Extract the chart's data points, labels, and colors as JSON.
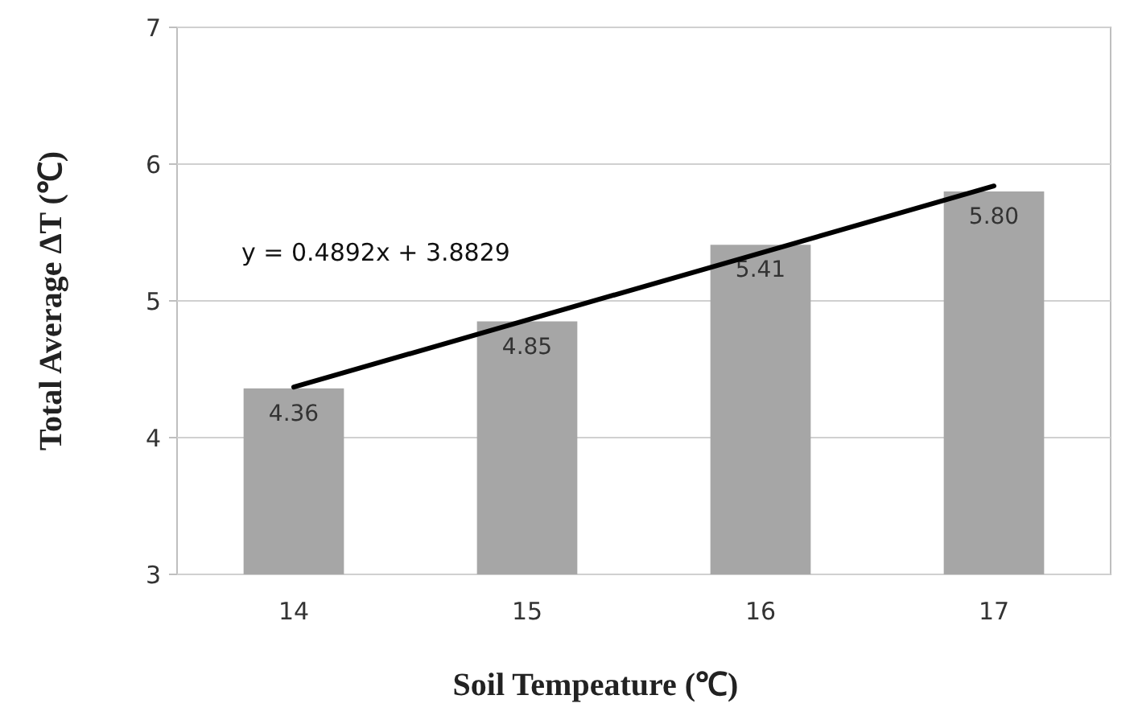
{
  "chart_data": {
    "type": "bar",
    "xlabel": "Soil Tempeature (℃)",
    "ylabel": "Total Average ΔT (℃)",
    "categories": [
      "14",
      "15",
      "16",
      "17"
    ],
    "series": [
      {
        "color": "#a6a6a6",
        "values": [
          4.36,
          4.85,
          5.41,
          5.8
        ],
        "value_labels": [
          "4.36",
          "4.85",
          "5.41",
          "5.80"
        ]
      },
      {
        "type": "line",
        "color": "#000000",
        "x": [
          "14",
          "17"
        ],
        "values": [
          4.37,
          5.84
        ]
      }
    ],
    "ylim": [
      3,
      7
    ],
    "yticks": [
      3,
      4,
      5,
      6,
      7
    ],
    "grid": "y",
    "annotations": [
      "y = 0.4892x + 3.8829"
    ]
  }
}
